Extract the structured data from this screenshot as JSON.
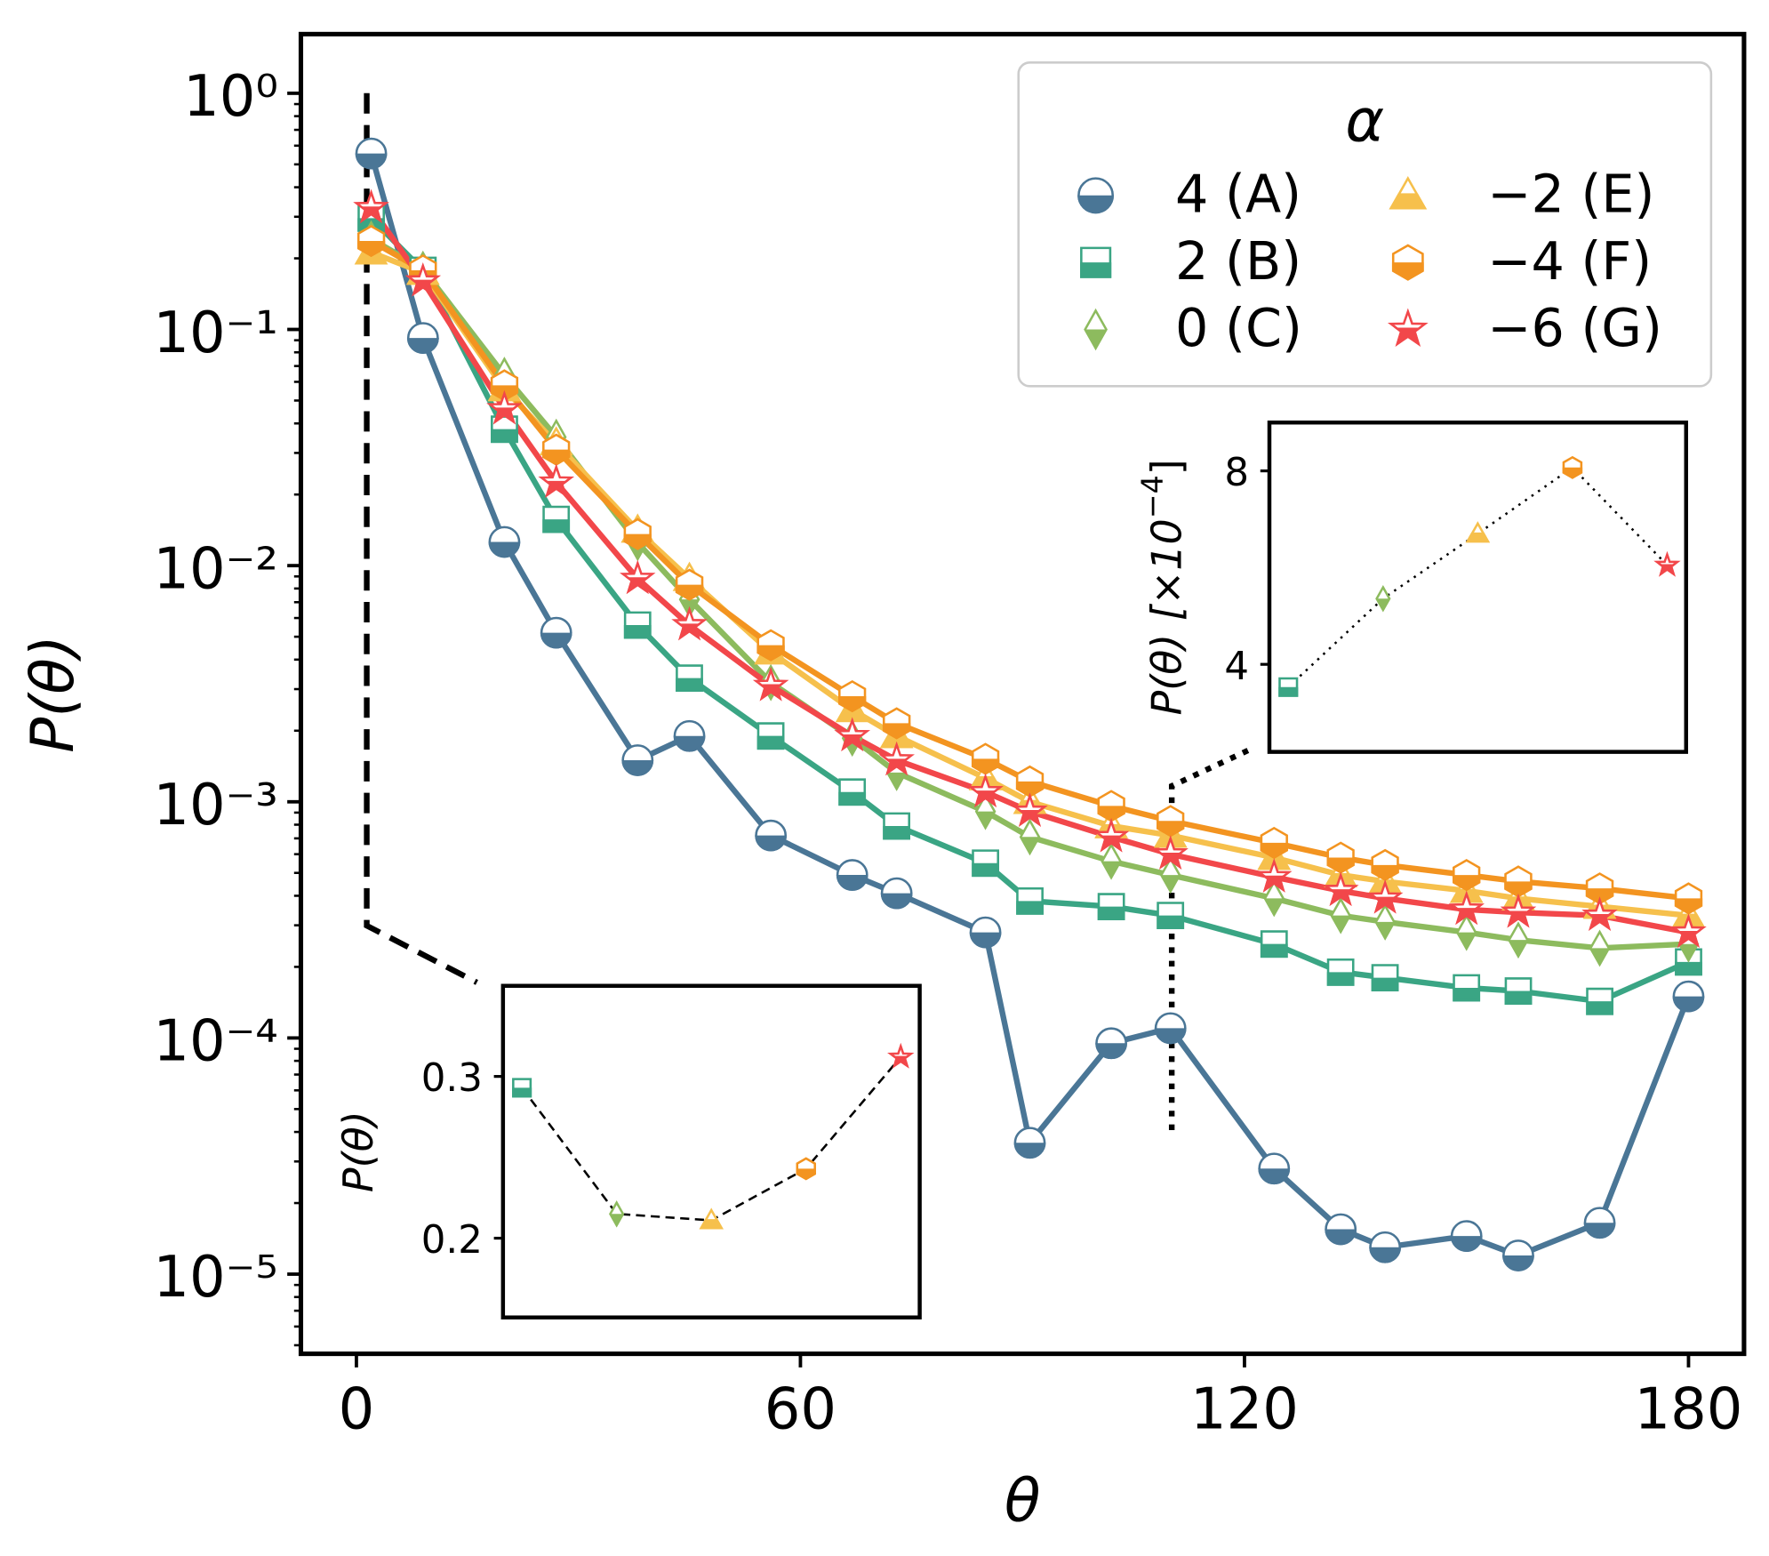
{
  "chart_data": [
    {
      "type": "line",
      "xlabel": "θ",
      "ylabel": "P(θ)",
      "log_y": true,
      "minor_ticks": true,
      "xlim": [
        -7.5,
        187.5
      ],
      "ylim": [
        4.6e-06,
        1.78
      ],
      "xticks": [
        0,
        60,
        120,
        180
      ],
      "yticks": [
        {
          "value": 1,
          "label": "10⁰"
        },
        {
          "value": 0.1,
          "label": "10⁻¹"
        },
        {
          "value": 0.01,
          "label": "10⁻²"
        },
        {
          "value": 0.001,
          "label": "10⁻³"
        },
        {
          "value": 0.0001,
          "label": "10⁻⁴"
        },
        {
          "value": 1e-05,
          "label": "10⁻⁵"
        }
      ],
      "legend": {
        "title": "α",
        "loc": "upper right",
        "ncol": 2
      },
      "x": [
        2,
        9,
        20,
        27,
        38,
        45,
        56,
        67,
        73,
        85,
        91,
        102,
        110,
        124,
        133,
        139,
        150,
        157,
        168,
        180
      ],
      "series": [
        {
          "name": "4 (A)",
          "color": "#4a7696",
          "marker": "circle",
          "values": [
            0.556,
            0.092,
            0.0126,
            0.0052,
            0.0015,
            0.0019,
            0.00072,
            0.00049,
            0.00041,
            0.00028,
            3.6e-05,
            9.5e-05,
            0.00011,
            2.8e-05,
            1.55e-05,
            1.3e-05,
            1.45e-05,
            1.2e-05,
            1.65e-05,
            0.00015
          ]
        },
        {
          "name": "2 (B)",
          "color": "#3aa584",
          "marker": "square",
          "values": [
            0.296,
            0.178,
            0.0378,
            0.0157,
            0.0056,
            0.00334,
            0.0019,
            0.0011,
            0.00079,
            0.00055,
            0.00038,
            0.00036,
            0.00033,
            0.00025,
            0.00019,
            0.00018,
            0.000163,
            0.000158,
            0.000143,
            0.00021
          ]
        },
        {
          "name": "0 (C)",
          "color": "#8dbb5e",
          "marker": "thin_diamond",
          "values": [
            0.242,
            0.18,
            0.064,
            0.035,
            0.0125,
            0.0072,
            0.0032,
            0.00186,
            0.00133,
            0.00091,
            0.00071,
            0.00056,
            0.00049,
            0.00039,
            0.00033,
            0.00031,
            0.00028,
            0.00026,
            0.00024,
            0.00025
          ]
        },
        {
          "name": "−2 (E)",
          "color": "#f6c04c",
          "marker": "triangle",
          "values": [
            0.212,
            0.174,
            0.056,
            0.033,
            0.0141,
            0.0088,
            0.0043,
            0.00245,
            0.0019,
            0.00126,
            0.001,
            0.00079,
            0.00072,
            0.00058,
            0.00049,
            0.00046,
            0.00042,
            0.00039,
            0.00036,
            0.00033
          ]
        },
        {
          "name": "−4 (F)",
          "color": "#f39420",
          "marker": "hexagon",
          "values": [
            0.237,
            0.178,
            0.058,
            0.031,
            0.0136,
            0.0083,
            0.0046,
            0.0028,
            0.00215,
            0.00152,
            0.00122,
            0.00096,
            0.00083,
            0.00067,
            0.00058,
            0.00054,
            0.00049,
            0.00046,
            0.00043,
            0.00039
          ]
        },
        {
          "name": "−6 (G)",
          "color": "#f2474a",
          "marker": "star",
          "values": [
            0.327,
            0.16,
            0.046,
            0.0225,
            0.0088,
            0.0056,
            0.0031,
            0.0019,
            0.0015,
            0.0011,
            0.00091,
            0.00071,
            0.0006,
            0.00048,
            0.00042,
            0.00039,
            0.00035,
            0.00034,
            0.00033,
            0.00028
          ]
        }
      ]
    },
    {
      "type": "line",
      "ylabel": "P(θ)",
      "linestyle": "dashed",
      "x": [
        2,
        0,
        -2,
        -4,
        -6
      ],
      "xlim": [
        2.4,
        -6.4
      ],
      "ylim": [
        0.151,
        0.356
      ],
      "yticks": [
        0.2,
        0.3
      ],
      "values": [
        0.293,
        0.215,
        0.211,
        0.243,
        0.312
      ],
      "colors": [
        "#3aa584",
        "#8dbb5e",
        "#f6c04c",
        "#f39420",
        "#f2474a"
      ],
      "markers": [
        "square",
        "thin_diamond",
        "triangle",
        "hexagon",
        "star"
      ]
    },
    {
      "type": "line",
      "ylabel": "P(θ) [×10",
      "ylabel_exponent": "−4",
      "ylabel_suffix": "]",
      "linestyle": "dotted",
      "x": [
        2,
        0,
        -2,
        -4,
        -6
      ],
      "xlim": [
        2.4,
        -6.4
      ],
      "ylim": [
        2.19,
        9.0
      ],
      "yticks": [
        4,
        8
      ],
      "values": [
        3.53,
        5.36,
        6.7,
        8.07,
        6.05
      ],
      "colors": [
        "#3aa584",
        "#8dbb5e",
        "#f6c04c",
        "#f39420",
        "#f2474a"
      ],
      "markers": [
        "square",
        "thin_diamond",
        "triangle",
        "hexagon",
        "star"
      ]
    }
  ]
}
